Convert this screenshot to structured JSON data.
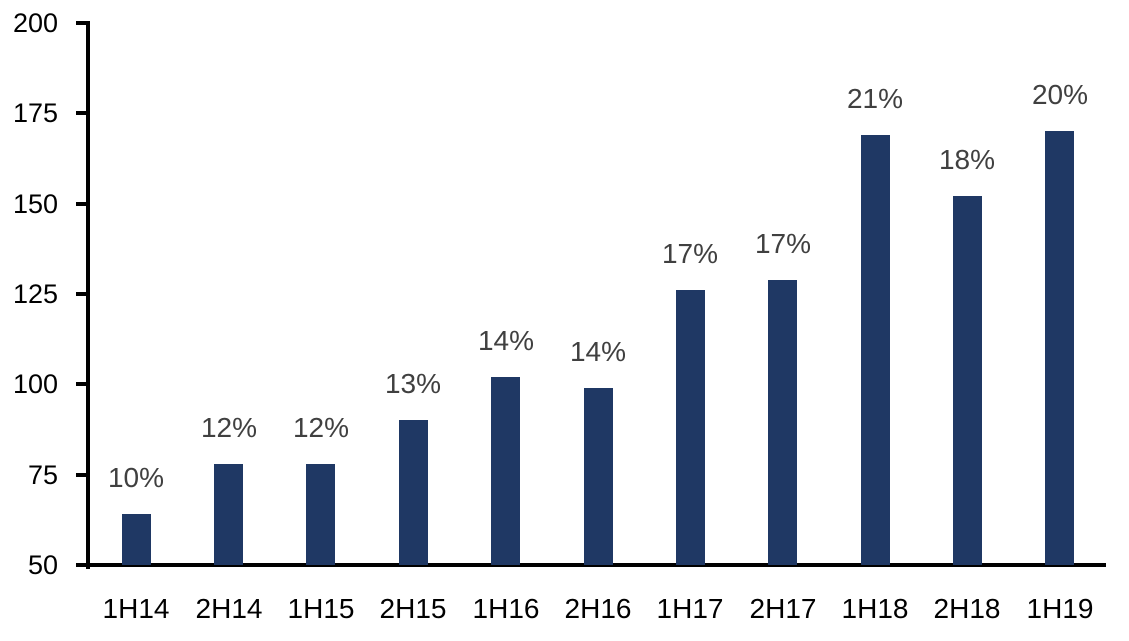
{
  "chart_data": {
    "type": "bar",
    "title": "",
    "categories": [
      "1H14",
      "2H14",
      "1H15",
      "2H15",
      "1H16",
      "2H16",
      "1H17",
      "2H17",
      "1H18",
      "2H18",
      "1H19"
    ],
    "values": [
      64,
      78,
      78,
      90,
      102,
      99,
      126,
      129,
      169,
      152,
      170
    ],
    "bar_labels": [
      "10%",
      "12%",
      "12%",
      "13%",
      "14%",
      "14%",
      "17%",
      "17%",
      "21%",
      "18%",
      "20%"
    ],
    "xlabel": "",
    "ylabel": "",
    "ylim": [
      50,
      200
    ],
    "yticks": [
      50,
      75,
      100,
      125,
      150,
      175,
      200
    ],
    "grid": false,
    "legend": false,
    "colors": {
      "bar": "#1F3864",
      "bar_label": "#404040",
      "axis": "#000000",
      "background": "#FFFFFF"
    }
  }
}
